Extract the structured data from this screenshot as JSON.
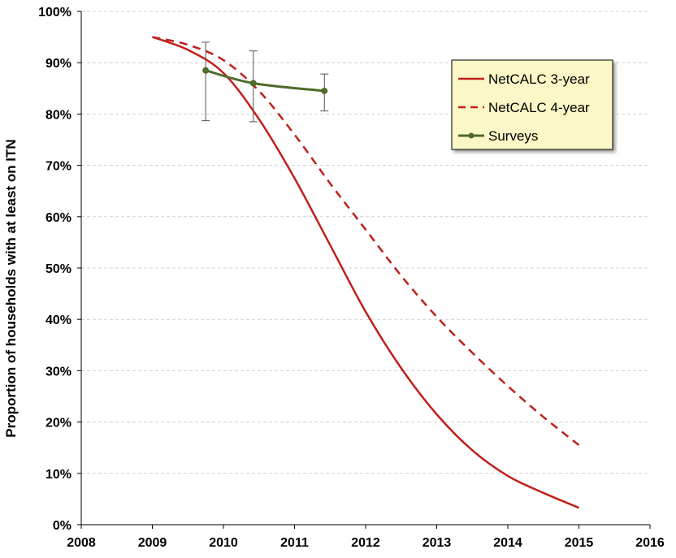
{
  "chart_data": {
    "type": "line",
    "title": "",
    "xlabel": "",
    "ylabel": "Proportion of households with at least on ITN",
    "xlim": [
      2008,
      2016
    ],
    "ylim": [
      0,
      1
    ],
    "x_ticks": [
      "2008",
      "2009",
      "2010",
      "2011",
      "2012",
      "2013",
      "2014",
      "2015",
      "2016"
    ],
    "y_ticks": [
      "0%",
      "10%",
      "20%",
      "30%",
      "40%",
      "50%",
      "60%",
      "70%",
      "80%",
      "90%",
      "100%"
    ],
    "grid": "horizontal dashed",
    "legend_position": "top-right",
    "series": [
      {
        "name": "NetCALC 3-year",
        "style": "solid",
        "color": "#c0201c",
        "points": [
          [
            2009.0,
            0.95
          ],
          [
            2009.5,
            0.925
          ],
          [
            2010.0,
            0.88
          ],
          [
            2010.5,
            0.79
          ],
          [
            2011.0,
            0.675
          ],
          [
            2011.5,
            0.545
          ],
          [
            2012.0,
            0.415
          ],
          [
            2012.5,
            0.305
          ],
          [
            2013.0,
            0.215
          ],
          [
            2013.5,
            0.145
          ],
          [
            2014.0,
            0.095
          ],
          [
            2014.5,
            0.062
          ],
          [
            2015.0,
            0.033
          ]
        ]
      },
      {
        "name": "NetCALC 4-year",
        "style": "dashed",
        "color": "#c0201c",
        "points": [
          [
            2009.0,
            0.95
          ],
          [
            2009.5,
            0.935
          ],
          [
            2010.0,
            0.905
          ],
          [
            2010.5,
            0.845
          ],
          [
            2011.0,
            0.76
          ],
          [
            2011.5,
            0.665
          ],
          [
            2012.0,
            0.575
          ],
          [
            2012.5,
            0.485
          ],
          [
            2013.0,
            0.405
          ],
          [
            2013.5,
            0.335
          ],
          [
            2014.0,
            0.27
          ],
          [
            2014.5,
            0.21
          ],
          [
            2015.0,
            0.155
          ]
        ]
      },
      {
        "name": "Surveys",
        "style": "solid-markers",
        "color": "#4e6b2a",
        "points": [
          {
            "x": 2009.75,
            "y": 0.885,
            "ylow": 0.787,
            "yhigh": 0.94
          },
          {
            "x": 2010.42,
            "y": 0.86,
            "ylow": 0.785,
            "yhigh": 0.923
          },
          {
            "x": 2011.42,
            "y": 0.845,
            "ylow": 0.806,
            "yhigh": 0.878
          }
        ]
      }
    ],
    "colors": {
      "legend_bg": "#fbf7c6",
      "gridline": "#d0d0d0",
      "errorbar": "#555555"
    }
  }
}
